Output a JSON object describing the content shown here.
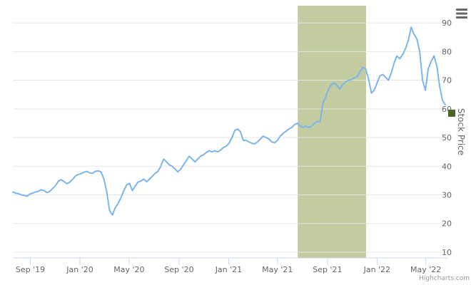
{
  "chart_data": {
    "type": "line",
    "ylabel": "Stock Price",
    "y_axis_side": "right",
    "ylim": [
      8,
      96
    ],
    "y_ticks": [
      10,
      20,
      30,
      40,
      50,
      60,
      70,
      80,
      90
    ],
    "x_range": [
      "2019-07-20",
      "2022-06-25"
    ],
    "x_ticks": [
      {
        "date": "2019-09-01",
        "label": "Sep '19"
      },
      {
        "date": "2020-01-01",
        "label": "Jan '20"
      },
      {
        "date": "2020-05-01",
        "label": "May '20"
      },
      {
        "date": "2020-09-01",
        "label": "Sep '20"
      },
      {
        "date": "2021-01-01",
        "label": "Jan '21"
      },
      {
        "date": "2021-05-01",
        "label": "May '21"
      },
      {
        "date": "2021-09-01",
        "label": "Sep '21"
      },
      {
        "date": "2022-01-01",
        "label": "Jan '22"
      },
      {
        "date": "2022-05-01",
        "label": "May '22"
      }
    ],
    "grid": true,
    "line_color": "#7cb5ec",
    "band": {
      "from": "2021-06-20",
      "to": "2021-12-05",
      "color": "#c2cca0"
    },
    "current_marker": {
      "value": 58.5,
      "color": "#4a6327"
    },
    "series": [
      {
        "points": [
          [
            "2019-07-20",
            31.0
          ],
          [
            "2019-07-27",
            30.6
          ],
          [
            "2019-08-03",
            30.4
          ],
          [
            "2019-08-10",
            30.0
          ],
          [
            "2019-08-17",
            29.8
          ],
          [
            "2019-08-24",
            29.5
          ],
          [
            "2019-08-31",
            30.3
          ],
          [
            "2019-09-07",
            30.6
          ],
          [
            "2019-09-14",
            31.0
          ],
          [
            "2019-09-21",
            31.3
          ],
          [
            "2019-09-28",
            31.8
          ],
          [
            "2019-10-05",
            31.5
          ],
          [
            "2019-10-12",
            30.8
          ],
          [
            "2019-10-19",
            31.2
          ],
          [
            "2019-10-26",
            32.2
          ],
          [
            "2019-11-02",
            33.2
          ],
          [
            "2019-11-09",
            34.8
          ],
          [
            "2019-11-16",
            35.3
          ],
          [
            "2019-11-23",
            34.6
          ],
          [
            "2019-11-30",
            33.9
          ],
          [
            "2019-12-07",
            34.4
          ],
          [
            "2019-12-14",
            35.4
          ],
          [
            "2019-12-21",
            36.6
          ],
          [
            "2019-12-28",
            37.1
          ],
          [
            "2020-01-04",
            37.4
          ],
          [
            "2020-01-11",
            37.9
          ],
          [
            "2020-01-18",
            38.2
          ],
          [
            "2020-01-25",
            37.7
          ],
          [
            "2020-02-01",
            37.5
          ],
          [
            "2020-02-08",
            38.2
          ],
          [
            "2020-02-15",
            38.4
          ],
          [
            "2020-02-22",
            38.0
          ],
          [
            "2020-02-29",
            35.5
          ],
          [
            "2020-03-07",
            31.0
          ],
          [
            "2020-03-14",
            24.5
          ],
          [
            "2020-03-21",
            23.0
          ],
          [
            "2020-03-28",
            25.5
          ],
          [
            "2020-04-04",
            27.0
          ],
          [
            "2020-04-11",
            29.0
          ],
          [
            "2020-04-18",
            31.5
          ],
          [
            "2020-04-25",
            33.5
          ],
          [
            "2020-05-02",
            34.0
          ],
          [
            "2020-05-09",
            31.5
          ],
          [
            "2020-05-16",
            33.0
          ],
          [
            "2020-05-23",
            34.5
          ],
          [
            "2020-05-30",
            34.8
          ],
          [
            "2020-06-06",
            35.5
          ],
          [
            "2020-06-13",
            34.6
          ],
          [
            "2020-06-20",
            35.5
          ],
          [
            "2020-06-27",
            36.5
          ],
          [
            "2020-07-04",
            37.5
          ],
          [
            "2020-07-11",
            38.2
          ],
          [
            "2020-07-18",
            40.0
          ],
          [
            "2020-07-25",
            42.5
          ],
          [
            "2020-08-01",
            41.5
          ],
          [
            "2020-08-08",
            40.5
          ],
          [
            "2020-08-15",
            40.0
          ],
          [
            "2020-08-22",
            39.0
          ],
          [
            "2020-08-29",
            38.0
          ],
          [
            "2020-09-05",
            39.0
          ],
          [
            "2020-09-12",
            40.5
          ],
          [
            "2020-09-19",
            42.0
          ],
          [
            "2020-09-26",
            43.5
          ],
          [
            "2020-10-03",
            42.5
          ],
          [
            "2020-10-10",
            41.5
          ],
          [
            "2020-10-17",
            42.5
          ],
          [
            "2020-10-24",
            43.5
          ],
          [
            "2020-10-31",
            44.0
          ],
          [
            "2020-11-07",
            44.8
          ],
          [
            "2020-11-14",
            45.4
          ],
          [
            "2020-11-21",
            45.0
          ],
          [
            "2020-11-28",
            45.4
          ],
          [
            "2020-12-05",
            45.0
          ],
          [
            "2020-12-12",
            45.6
          ],
          [
            "2020-12-19",
            46.5
          ],
          [
            "2020-12-26",
            47.0
          ],
          [
            "2021-01-02",
            48.0
          ],
          [
            "2021-01-09",
            50.0
          ],
          [
            "2021-01-16",
            52.5
          ],
          [
            "2021-01-23",
            53.0
          ],
          [
            "2021-01-30",
            52.0
          ],
          [
            "2021-02-06",
            49.0
          ],
          [
            "2021-02-13",
            49.0
          ],
          [
            "2021-02-20",
            48.5
          ],
          [
            "2021-02-27",
            48.0
          ],
          [
            "2021-03-06",
            47.8
          ],
          [
            "2021-03-13",
            48.5
          ],
          [
            "2021-03-20",
            49.5
          ],
          [
            "2021-03-27",
            50.5
          ],
          [
            "2021-04-03",
            50.0
          ],
          [
            "2021-04-10",
            49.5
          ],
          [
            "2021-04-17",
            48.5
          ],
          [
            "2021-04-24",
            48.2
          ],
          [
            "2021-05-01",
            49.0
          ],
          [
            "2021-05-08",
            50.5
          ],
          [
            "2021-05-15",
            51.5
          ],
          [
            "2021-05-22",
            52.2
          ],
          [
            "2021-05-29",
            53.0
          ],
          [
            "2021-06-05",
            53.5
          ],
          [
            "2021-06-12",
            54.5
          ],
          [
            "2021-06-19",
            55.0
          ],
          [
            "2021-06-26",
            54.0
          ],
          [
            "2021-07-03",
            53.5
          ],
          [
            "2021-07-10",
            54.0
          ],
          [
            "2021-07-17",
            53.5
          ],
          [
            "2021-07-24",
            54.0
          ],
          [
            "2021-07-31",
            55.0
          ],
          [
            "2021-08-07",
            55.5
          ],
          [
            "2021-08-14",
            55.5
          ],
          [
            "2021-08-21",
            62.0
          ],
          [
            "2021-08-28",
            64.5
          ],
          [
            "2021-09-04",
            67.0
          ],
          [
            "2021-09-11",
            68.5
          ],
          [
            "2021-09-18",
            69.0
          ],
          [
            "2021-09-25",
            68.0
          ],
          [
            "2021-10-02",
            67.0
          ],
          [
            "2021-10-09",
            68.5
          ],
          [
            "2021-10-16",
            69.5
          ],
          [
            "2021-10-23",
            70.0
          ],
          [
            "2021-10-30",
            70.2
          ],
          [
            "2021-11-06",
            70.8
          ],
          [
            "2021-11-13",
            71.2
          ],
          [
            "2021-11-20",
            73.0
          ],
          [
            "2021-11-27",
            74.5
          ],
          [
            "2021-12-04",
            74.0
          ],
          [
            "2021-12-11",
            70.5
          ],
          [
            "2021-12-18",
            65.5
          ],
          [
            "2021-12-25",
            66.5
          ],
          [
            "2022-01-01",
            69.0
          ],
          [
            "2022-01-08",
            71.5
          ],
          [
            "2022-01-15",
            72.0
          ],
          [
            "2022-01-22",
            71.0
          ],
          [
            "2022-01-29",
            70.0
          ],
          [
            "2022-02-05",
            72.5
          ],
          [
            "2022-02-12",
            76.0
          ],
          [
            "2022-02-19",
            78.5
          ],
          [
            "2022-02-26",
            77.5
          ],
          [
            "2022-03-05",
            79.0
          ],
          [
            "2022-03-12",
            81.0
          ],
          [
            "2022-03-19",
            84.0
          ],
          [
            "2022-03-26",
            88.5
          ],
          [
            "2022-04-02",
            86.0
          ],
          [
            "2022-04-09",
            84.5
          ],
          [
            "2022-04-16",
            80.0
          ],
          [
            "2022-04-23",
            70.0
          ],
          [
            "2022-04-30",
            66.5
          ],
          [
            "2022-05-07",
            74.0
          ],
          [
            "2022-05-14",
            76.5
          ],
          [
            "2022-05-21",
            78.5
          ],
          [
            "2022-05-28",
            75.0
          ],
          [
            "2022-06-04",
            68.0
          ],
          [
            "2022-06-11",
            63.0
          ],
          [
            "2022-06-18",
            61.5
          ]
        ]
      }
    ]
  },
  "menu": {
    "icon": "hamburger-menu-icon"
  },
  "credits": {
    "text": "Highcharts.com"
  }
}
